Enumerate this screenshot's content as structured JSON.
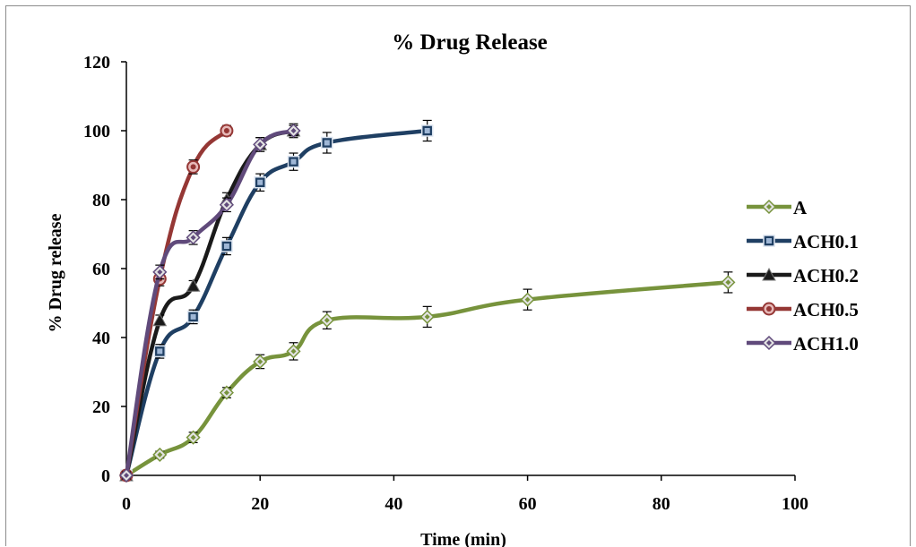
{
  "chart_data": {
    "type": "line",
    "title": "% Drug Release",
    "xlabel": "Time (min)",
    "ylabel": "% Drug release",
    "xlim": [
      0,
      100
    ],
    "ylim": [
      0,
      120
    ],
    "xticks": [
      0,
      20,
      40,
      60,
      80,
      100
    ],
    "yticks": [
      0,
      20,
      40,
      60,
      80,
      100,
      120
    ],
    "grid": false,
    "legend_position": "right",
    "series": [
      {
        "name": "A",
        "color": "#77933c",
        "marker": "diamond",
        "x": [
          0,
          5,
          10,
          15,
          20,
          25,
          30,
          45,
          60,
          90
        ],
        "y": [
          0,
          6,
          11,
          24,
          33,
          36,
          45,
          46,
          51,
          56
        ],
        "error": [
          1,
          1,
          1.5,
          1.5,
          2,
          2.5,
          2.5,
          3,
          3,
          3
        ]
      },
      {
        "name": "ACH0.1",
        "color": "#1f3f63",
        "marker": "square",
        "x": [
          0,
          5,
          10,
          15,
          20,
          25,
          30,
          45
        ],
        "y": [
          0,
          36,
          46,
          66.5,
          85,
          91,
          96.5,
          100
        ],
        "error": [
          1,
          2,
          2,
          2.5,
          2.5,
          2.5,
          3,
          3
        ]
      },
      {
        "name": "ACH0.2",
        "color": "#1a1a1a",
        "marker": "triangle",
        "x": [
          0,
          5,
          10,
          15,
          20,
          25
        ],
        "y": [
          0,
          45,
          55,
          80,
          96,
          100
        ],
        "error": [
          1,
          1.5,
          1.5,
          2,
          2,
          2
        ]
      },
      {
        "name": "ACH0.5",
        "color": "#953735",
        "marker": "circle",
        "x": [
          0,
          5,
          10,
          15
        ],
        "y": [
          0,
          57,
          89.5,
          100
        ],
        "error": [
          1,
          2,
          2,
          1.5
        ]
      },
      {
        "name": "ACH1.0",
        "color": "#604a7b",
        "marker": "diamond",
        "x": [
          0,
          5,
          10,
          15,
          20,
          25
        ],
        "y": [
          0,
          59,
          69,
          78.5,
          96,
          100
        ],
        "error": [
          1,
          2,
          2,
          2,
          2,
          1.5
        ]
      }
    ]
  }
}
